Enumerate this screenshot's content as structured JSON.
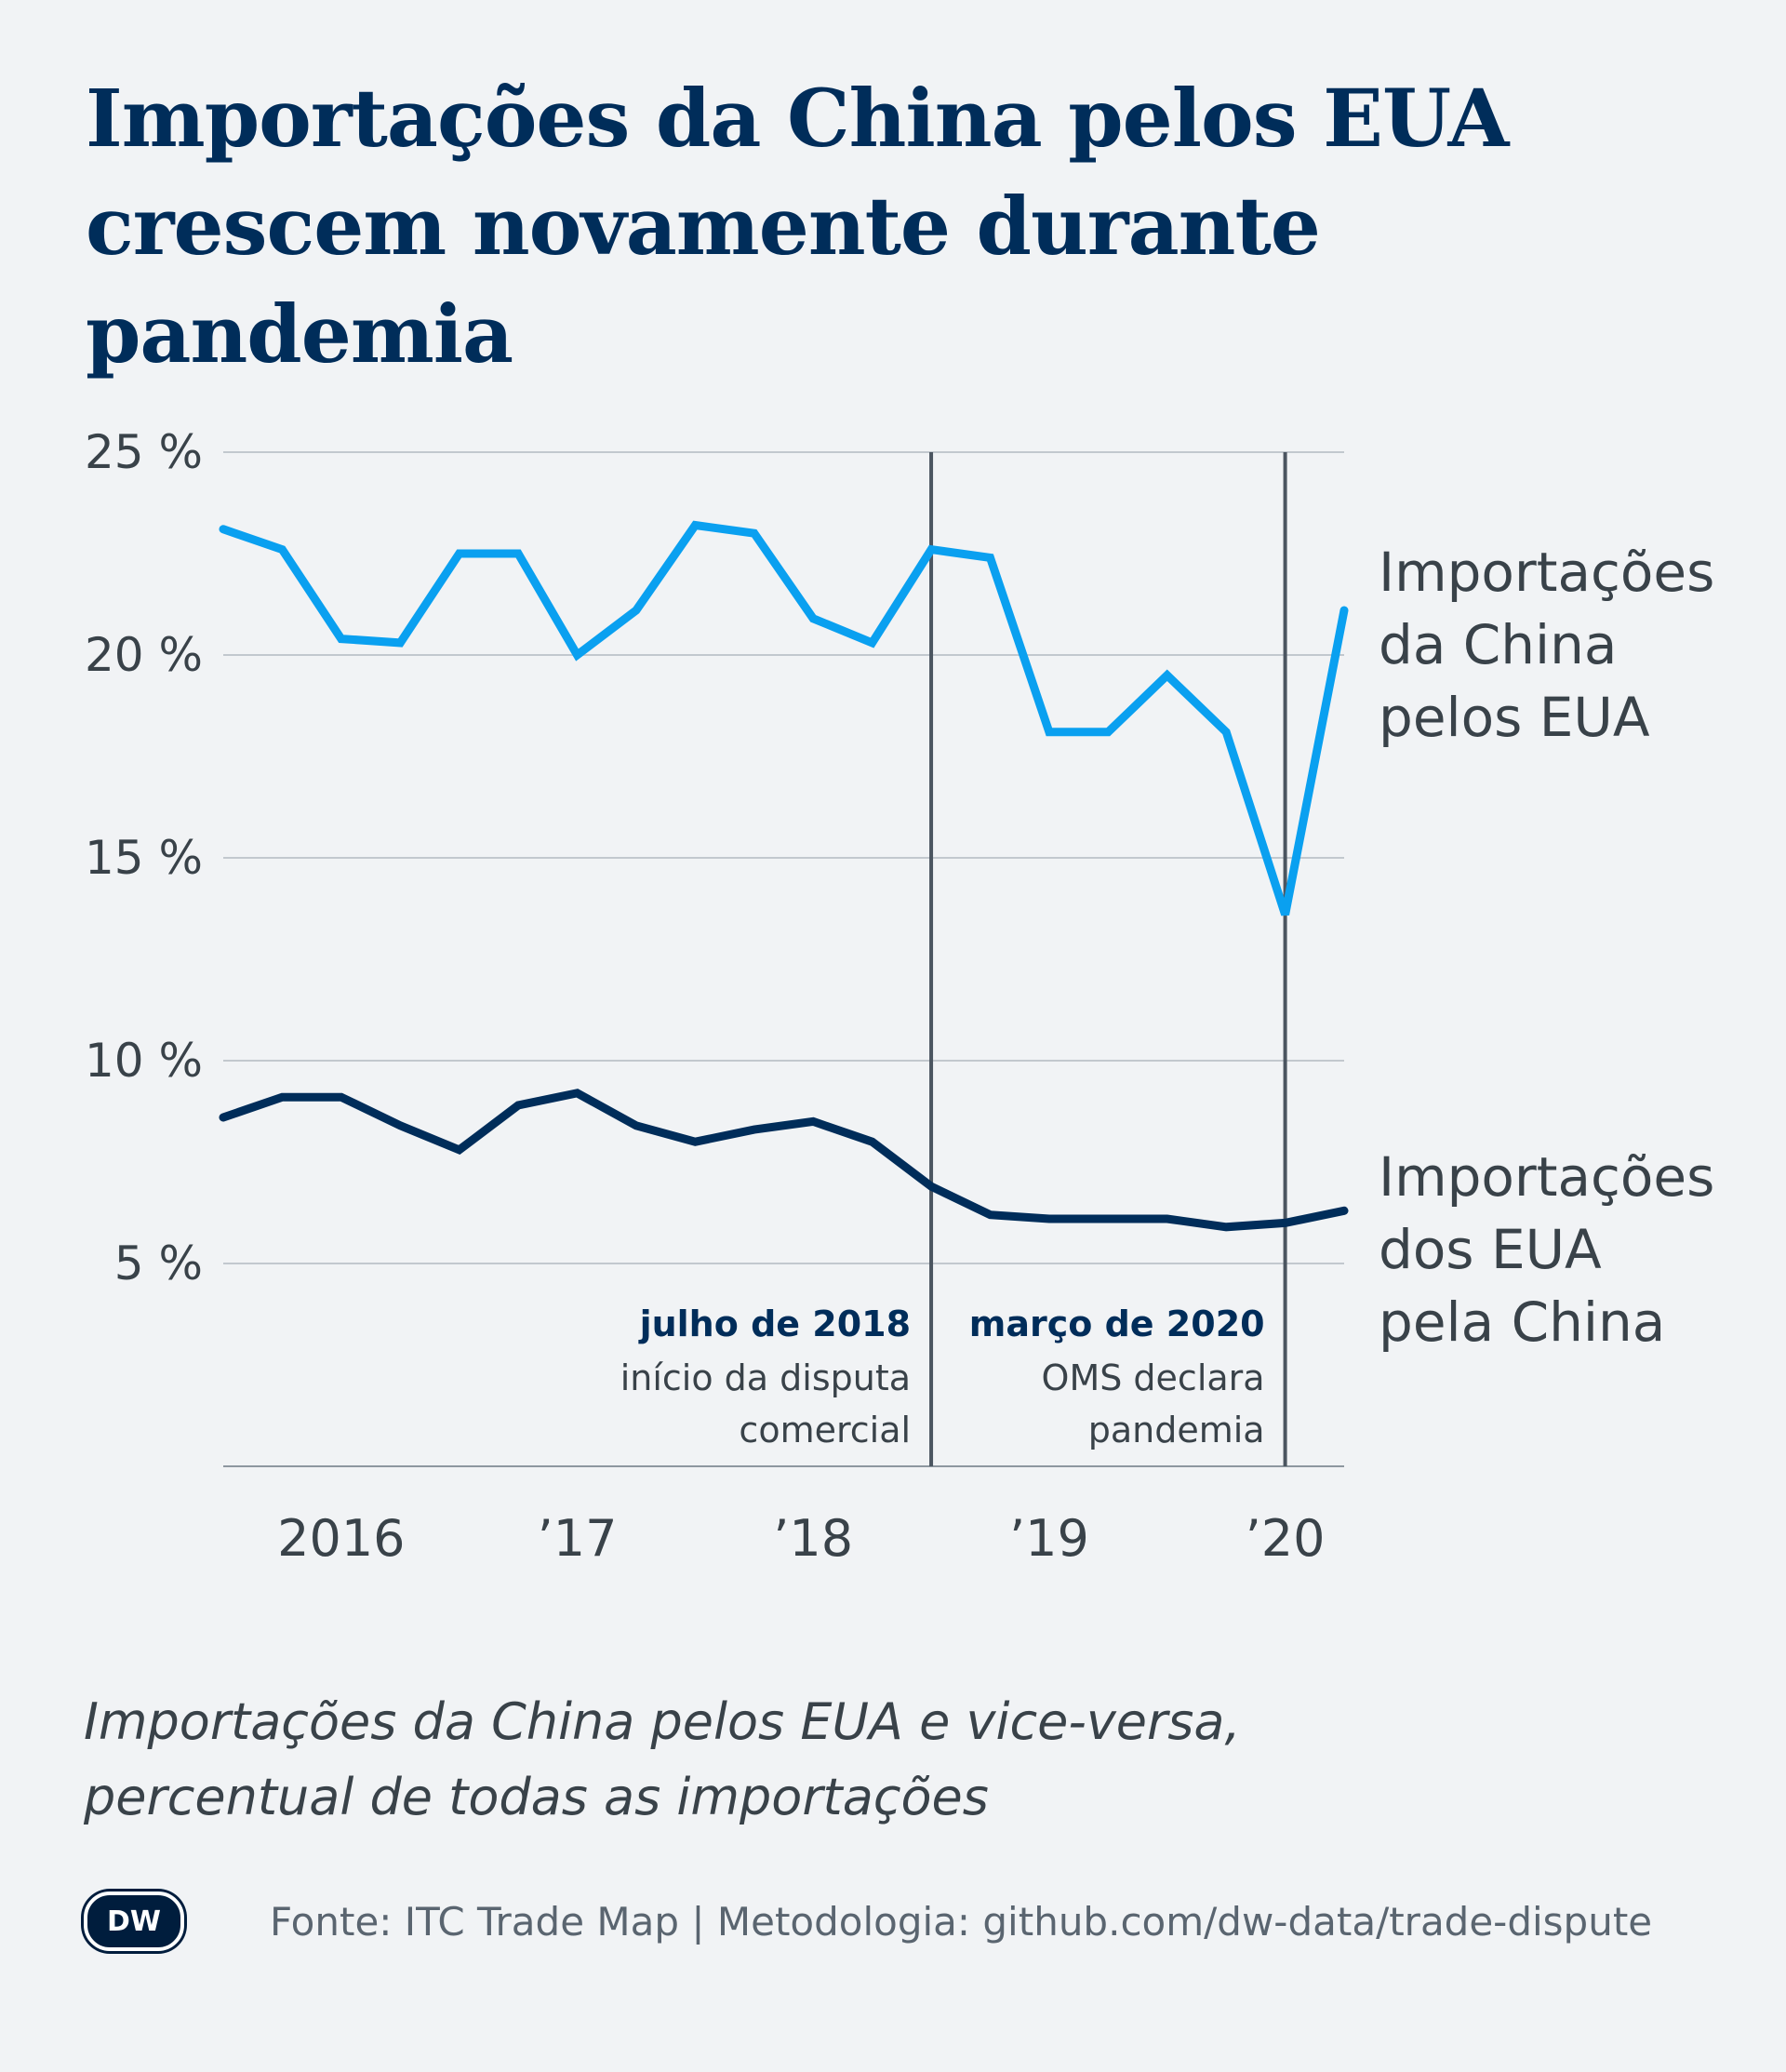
{
  "title": {
    "line1": "Importações da China pelos EUA",
    "line2": "crescem novamente durante pandemia"
  },
  "subtitle": {
    "line1": "Importações da China pelos EUA e vice-versa,",
    "line2": "percentual de todas as importações"
  },
  "footer": {
    "logo_text": "DW",
    "source": "Fonte: ITC Trade Map | Metodologia: github.com/dw-data/trade-dispute"
  },
  "colors": {
    "background": "#f1f3f5",
    "us_imports_from_china": "#0aa0f0",
    "china_imports_from_us": "#002d5a",
    "marker_line": "#4b5560",
    "grid": "#c2c8ce",
    "axis_text": "#394249"
  },
  "chart_data": {
    "type": "line",
    "x": [
      "2015 T4",
      "2016 T1",
      "2016 T2",
      "2016 T3",
      "2016 T4",
      "2017 T1",
      "2017 T2",
      "2017 T3",
      "2017 T4",
      "2018 T1",
      "2018 T2",
      "2018 T3",
      "2018 T4",
      "2019 T1",
      "2019 T2",
      "2019 T3",
      "2019 T4",
      "2020 T1",
      "2020 T2",
      "2020 T3"
    ],
    "x_tick_labels": [
      {
        "label": "2016",
        "at": 2
      },
      {
        "label": "’17",
        "at": 6
      },
      {
        "label": "’18",
        "at": 10
      },
      {
        "label": "’19",
        "at": 14
      },
      {
        "label": "’20",
        "at": 18
      }
    ],
    "ylim": [
      0,
      25
    ],
    "yticks": [
      {
        "value": 5,
        "label": "5 %"
      },
      {
        "value": 10,
        "label": "10 %"
      },
      {
        "value": 15,
        "label": "15 %"
      },
      {
        "value": 20,
        "label": "20 %"
      },
      {
        "value": 25,
        "label": "25 %"
      }
    ],
    "grid": true,
    "series": [
      {
        "name_lines": [
          "Importações",
          "da China",
          "pelos EUA"
        ],
        "color": "#0aa0f0",
        "values": [
          23.1,
          22.6,
          20.4,
          20.3,
          22.5,
          22.5,
          20.0,
          21.1,
          23.2,
          23.0,
          20.9,
          20.3,
          22.6,
          22.4,
          18.1,
          18.1,
          19.5,
          18.1,
          13.6,
          21.1
        ]
      },
      {
        "name_lines": [
          "Importações",
          "dos EUA",
          "pela China"
        ],
        "color": "#002d5a",
        "values": [
          8.6,
          9.1,
          9.1,
          8.4,
          7.8,
          8.9,
          9.2,
          8.4,
          8.0,
          8.3,
          8.5,
          8.0,
          6.9,
          6.2,
          6.1,
          6.1,
          6.1,
          5.9,
          6.0,
          6.3
        ]
      }
    ],
    "annotations": [
      {
        "at": 12.0,
        "title": "julho de 2018",
        "text_lines": [
          "início da disputa",
          "comercial"
        ]
      },
      {
        "at": 18.0,
        "title": "março de 2020",
        "text_lines": [
          "OMS declara",
          "pandemia"
        ]
      }
    ]
  }
}
